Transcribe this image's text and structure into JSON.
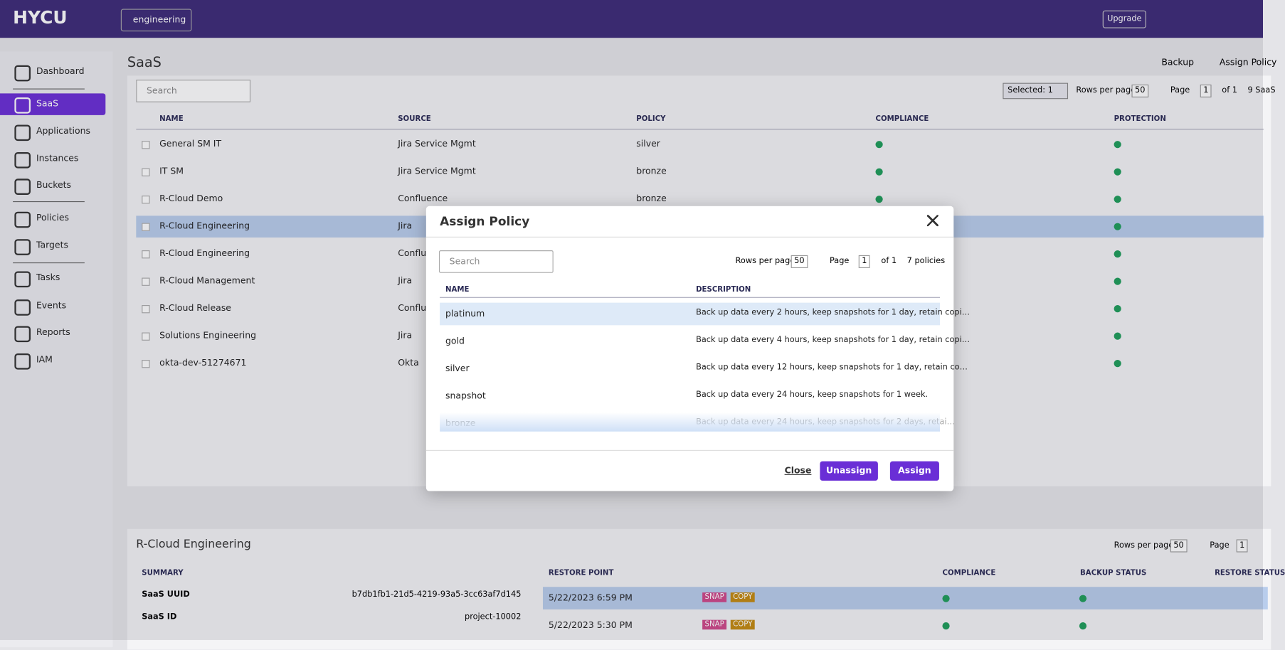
{
  "header": {
    "logo": "HYCU",
    "org": "engineering",
    "upgrade": "Upgrade"
  },
  "nav": [
    "Dashboard",
    "SaaS",
    "Applications",
    "Instances",
    "Buckets",
    "Policies",
    "Targets",
    "Tasks",
    "Events",
    "Reports",
    "IAM"
  ],
  "page": {
    "title": "SaaS",
    "actions": [
      "Backup",
      "Assign Policy"
    ],
    "search": "Search",
    "selected": "Selected: 1",
    "rows_per_page": "Rows per page",
    "rows_value": "50",
    "page_label": "Page",
    "page_value": "1",
    "page_of": "of 1",
    "count": "9 SaaS"
  },
  "table": {
    "columns": [
      "NAME",
      "SOURCE",
      "POLICY",
      "COMPLIANCE",
      "PROTECTION"
    ],
    "rows": [
      [
        "General SM IT",
        "Jira Service Mgmt",
        "silver"
      ],
      [
        "IT SM",
        "Jira Service Mgmt",
        "bronze"
      ],
      [
        "R-Cloud Demo",
        "Confluence",
        "bronze"
      ],
      [
        "R-Cloud Engineering",
        "Jira"
      ],
      [
        "R-Cloud Engineering",
        "Confluence"
      ],
      [
        "R-Cloud Management",
        "Jira"
      ],
      [
        "R-Cloud Release",
        "Confluence"
      ],
      [
        "Solutions Engineering",
        "Jira"
      ],
      [
        "okta-dev-51274671",
        "Okta"
      ]
    ]
  },
  "modal": {
    "title": "Assign Policy",
    "search": "Search",
    "rows_per_page": "Rows per page",
    "rows_value": "50",
    "page_label": "Page",
    "page_value": "1",
    "page_of": "of 1",
    "count": "7 policies",
    "columns": [
      "NAME",
      "DESCRIPTION"
    ],
    "policies": [
      [
        "platinum",
        "Back up data every 2 hours, keep snapshots for 1 day, retain copi…"
      ],
      [
        "gold",
        "Back up data every 4 hours, keep snapshots for 1 day, retain copi…"
      ],
      [
        "silver",
        "Back up data every 12 hours, keep snapshots for 1 day, retain co…"
      ],
      [
        "snapshot",
        "Back up data every 24 hours, keep snapshots for 1 week."
      ],
      [
        "bronze",
        "Back up data every 24 hours, keep snapshots for 2 days, retai…"
      ]
    ],
    "buttons": [
      "Close",
      "Unassign",
      "Assign"
    ]
  },
  "detail": {
    "title": "R-Cloud Engineering",
    "rows_per_page": "Rows per page",
    "rows_value": "50",
    "page_label": "Page",
    "page_value": "1",
    "summary_header": "SUMMARY",
    "summary": [
      [
        "SaaS UUID",
        "b7db1fb1-21d5-4219-93a5-3cc63af7d145"
      ],
      [
        "SaaS ID",
        "project-10002"
      ]
    ],
    "restore_columns": [
      "RESTORE POINT",
      "COMPLIANCE",
      "BACKUP STATUS",
      "RESTORE STATUS"
    ],
    "restore_points": [
      "5/22/2023 6:59 PM",
      "5/22/2023 5:30 PM"
    ],
    "badges": [
      "SNAP",
      "COPY"
    ]
  }
}
